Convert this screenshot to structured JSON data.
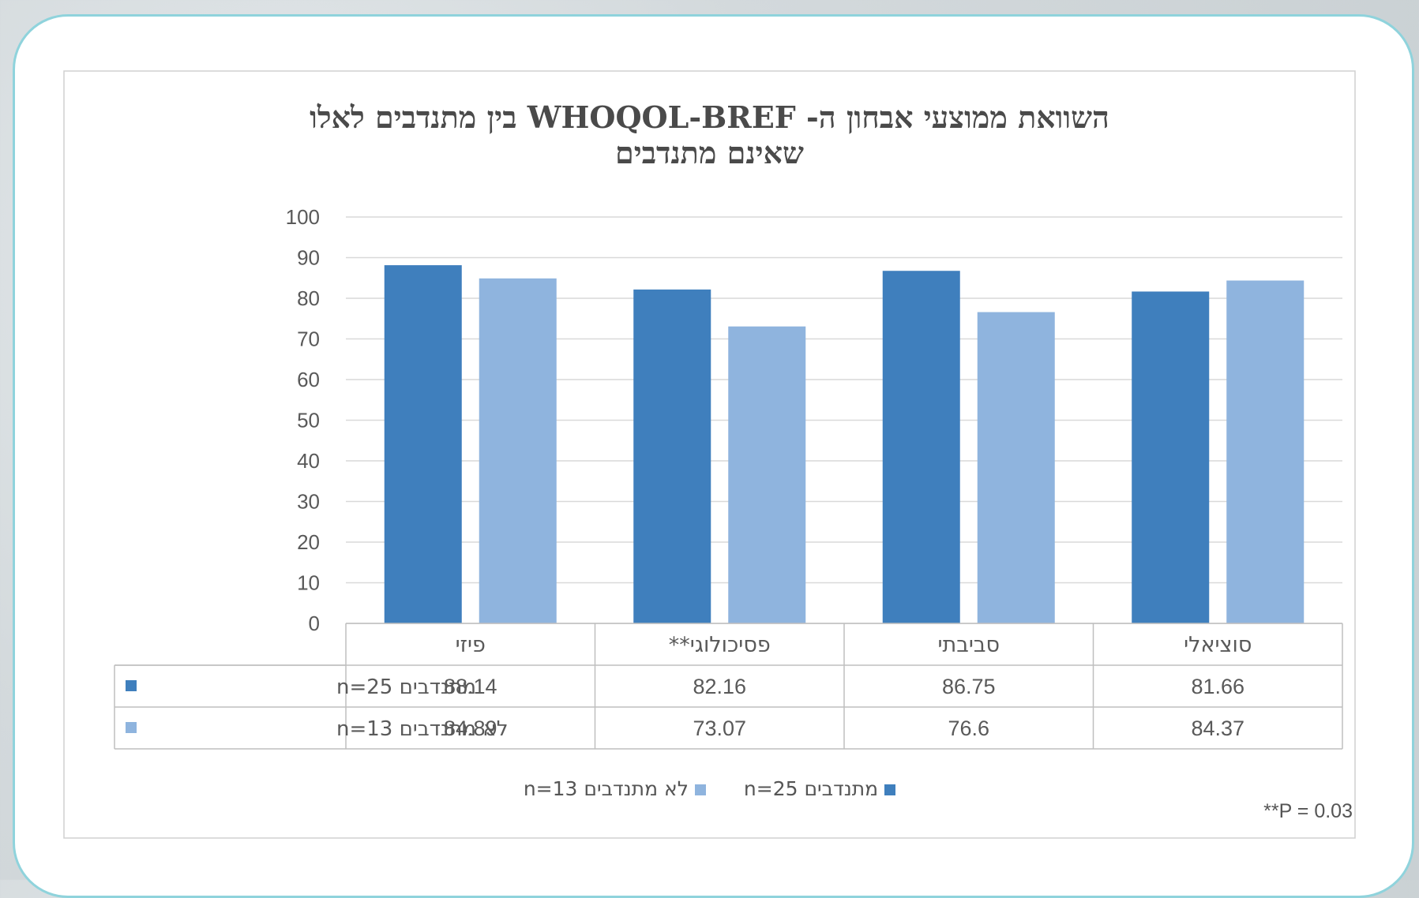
{
  "chart_data": {
    "type": "bar",
    "title_line1": "השוואת ממוצעי אבחון ה- WHOQOL-BREF בין מתנדבים לאלו",
    "title_line2": "שאינם מתנדבים",
    "categories": [
      "פיזי",
      "פסיכולוגי**",
      "סביבתי",
      "סוציאלי"
    ],
    "series": [
      {
        "name": "מתנדבים n=25",
        "values": [
          88.14,
          82.16,
          86.75,
          81.66
        ],
        "color": "#3f7fbd"
      },
      {
        "name": "לא מתנדבים n=13",
        "values": [
          84.89,
          73.07,
          76.6,
          84.37
        ],
        "color": "#8fb4de"
      }
    ],
    "ylim": [
      0,
      100
    ],
    "yticks": [
      0,
      10,
      20,
      30,
      40,
      50,
      60,
      70,
      80,
      90,
      100
    ],
    "grid": true,
    "legend_position": "bottom",
    "data_table": true
  },
  "footnote": "**P = 0.03"
}
